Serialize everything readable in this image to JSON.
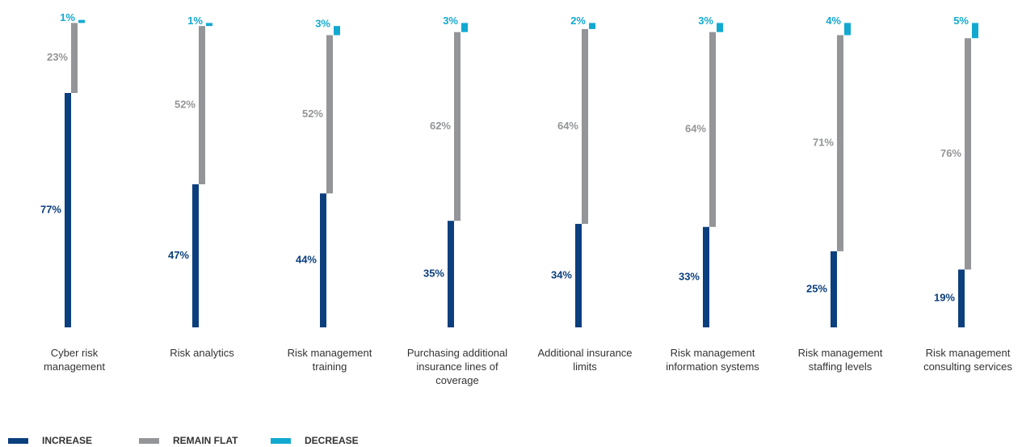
{
  "chart_data": {
    "type": "staggered-bar",
    "categories": [
      "Cyber risk management",
      "Risk analytics",
      "Risk management training",
      "Purchasing additional insurance lines of coverage",
      "Additional insurance limits",
      "Risk management information systems",
      "Risk management staffing levels",
      "Risk management consulting services"
    ],
    "series": [
      {
        "name": "INCREASE",
        "color": "#0b3f7d",
        "values": [
          77,
          47,
          44,
          35,
          34,
          33,
          25,
          19
        ],
        "value_labels": [
          "77%",
          "47%",
          "44%",
          "35%",
          "34%",
          "33%",
          "25%",
          "19%"
        ]
      },
      {
        "name": "REMAIN FLAT",
        "color": "#939598",
        "values": [
          23,
          52,
          52,
          62,
          64,
          64,
          71,
          76
        ],
        "value_labels": [
          "23%",
          "52%",
          "52%",
          "62%",
          "64%",
          "64%",
          "71%",
          "76%"
        ]
      },
      {
        "name": "DECREASE",
        "color": "#12a9d1",
        "values": [
          1,
          1,
          3,
          3,
          2,
          3,
          4,
          5
        ],
        "value_labels": [
          "1%",
          "1%",
          "3%",
          "3%",
          "2%",
          "3%",
          "4%",
          "5%"
        ]
      }
    ],
    "legend": "bottom-left"
  }
}
